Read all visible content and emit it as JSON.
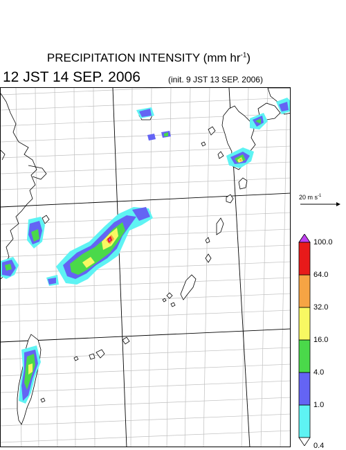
{
  "title": {
    "main": "PRECIPITATION INTENSITY (mm hr",
    "exponent": "-1",
    "close": ")"
  },
  "valid_time": "12 JST 14 SEP. 2006",
  "init_time": "(init. 9 JST 13 SEP. 2006)",
  "vector_reference": {
    "value": "20 m s",
    "exponent": "-1"
  },
  "colorbar": {
    "levels": [
      "0.4",
      "1.0",
      "4.0",
      "16.0",
      "32.0",
      "64.0",
      "100.0"
    ],
    "colors": [
      "#5ef3f3",
      "#6464f4",
      "#4ad94a",
      "#f8f862",
      "#f6a444",
      "#e81a1a"
    ],
    "under_color": "#ffffff",
    "over_color": "#c040f0"
  },
  "map": {
    "land_color": "#ffffff",
    "coast_color": "#000000",
    "grid_color": "#bfbfbf",
    "major_grid_color": "#000000"
  }
}
